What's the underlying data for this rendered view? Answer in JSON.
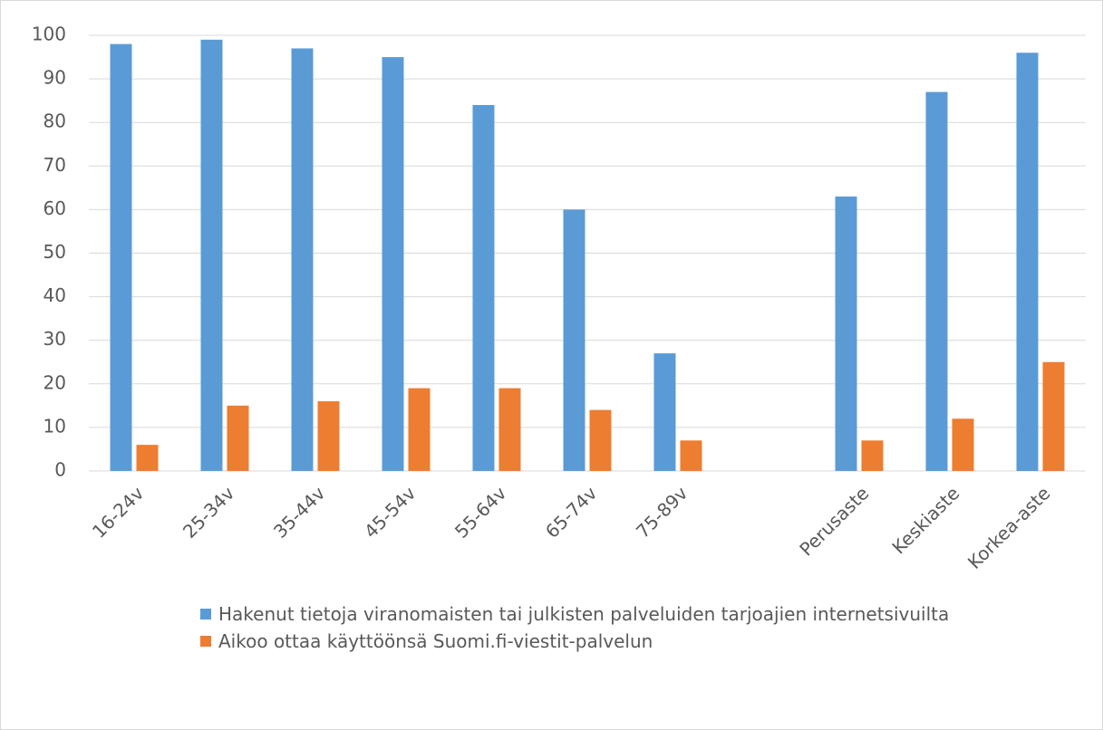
{
  "chart_data": {
    "type": "bar",
    "categories": [
      "16-24v",
      "25-34v",
      "35-44v",
      "45-54v",
      "55-64v",
      "65-74v",
      "75-89v",
      null,
      "Perusaste",
      "Keskiaste",
      "Korkea-aste"
    ],
    "series": [
      {
        "name": "Hakenut tietoja viranomaisten tai julkisten palveluiden tarjoajien internetsivuilta",
        "color": "#5b9bd5",
        "values": [
          98,
          99,
          97,
          95,
          84,
          60,
          27,
          null,
          63,
          87,
          96
        ]
      },
      {
        "name": "Aikoo ottaa käyttöönsä Suomi.fi-viestit-palvelun",
        "color": "#ed7d31",
        "values": [
          6,
          15,
          16,
          19,
          19,
          14,
          7,
          null,
          7,
          12,
          25
        ]
      }
    ],
    "ylim": [
      0,
      100
    ],
    "yticks": [
      0,
      10,
      20,
      30,
      40,
      50,
      60,
      70,
      80,
      90,
      100
    ],
    "grid": true,
    "legend": "bottom"
  }
}
